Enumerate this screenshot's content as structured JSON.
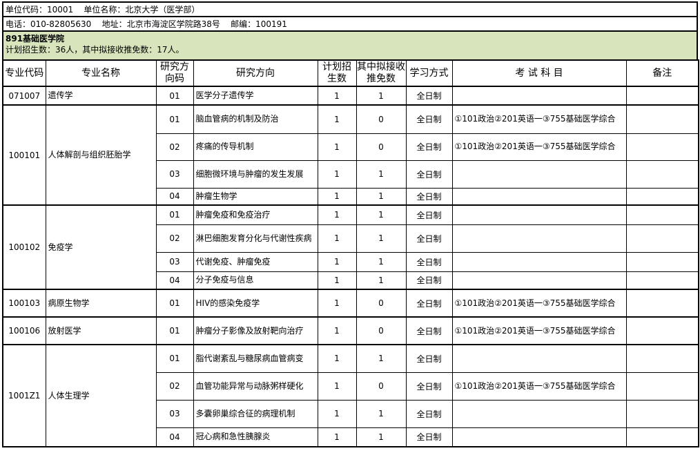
{
  "unit_line": "单位代码：10001    单位名称：北京大学（医学部）",
  "contact_line": "电话：010-82805630    地址：北京市海淀区学院路38号    邮编：100191",
  "department": {
    "title": "891基础医学院",
    "summary": "计划招生数：36人，其中拟接收推免数：17人。",
    "color": "#d8e4bc"
  },
  "headers": [
    "专业代码",
    "专业名称",
    "研究方向码",
    "研究方向",
    "计划招生数",
    "其中拟接收推免数",
    "学习方式",
    "考 试 科 目",
    "备注"
  ],
  "majors": [
    {
      "code": "071007",
      "name": "遗传学",
      "directions": [
        {
          "code": "01",
          "name": "医学分子遗传学",
          "plan": "1",
          "exempt": "1",
          "mode": "全日制",
          "exam": "",
          "note": ""
        }
      ]
    },
    {
      "code": "100101",
      "name": "人体解剖与组织胚胎学",
      "directions": [
        {
          "code": "01",
          "name": "脑血管病的机制及防治",
          "plan": "1",
          "exempt": "0",
          "mode": "全日制",
          "exam": "①101政治②201英语一③755基础医学综合",
          "note": ""
        },
        {
          "code": "02",
          "name": "疼痛的传导机制",
          "plan": "1",
          "exempt": "0",
          "mode": "全日制",
          "exam": "①101政治②201英语一③755基础医学综合",
          "note": ""
        },
        {
          "code": "03",
          "name": "细胞微环境与肿瘤的发生发展",
          "plan": "1",
          "exempt": "1",
          "mode": "全日制",
          "exam": "",
          "note": ""
        },
        {
          "code": "04",
          "name": "肿瘤生物学",
          "plan": "1",
          "exempt": "1",
          "mode": "全日制",
          "exam": "",
          "note": ""
        }
      ]
    },
    {
      "code": "100102",
      "name": "免疫学",
      "directions": [
        {
          "code": "01",
          "name": "肿瘤免疫和免疫治疗",
          "plan": "1",
          "exempt": "1",
          "mode": "全日制",
          "exam": "",
          "note": ""
        },
        {
          "code": "02",
          "name": "淋巴细胞发育分化与代谢性疾病",
          "plan": "1",
          "exempt": "1",
          "mode": "全日制",
          "exam": "",
          "note": ""
        },
        {
          "code": "03",
          "name": "代谢免疫、肿瘤免疫",
          "plan": "1",
          "exempt": "1",
          "mode": "全日制",
          "exam": "",
          "note": ""
        },
        {
          "code": "04",
          "name": "分子免疫与信息",
          "plan": "1",
          "exempt": "1",
          "mode": "全日制",
          "exam": "",
          "note": ""
        }
      ]
    },
    {
      "code": "100103",
      "name": "病原生物学",
      "directions": [
        {
          "code": "01",
          "name": "HIV的感染免疫学",
          "plan": "1",
          "exempt": "0",
          "mode": "全日制",
          "exam": "①101政治②201英语一③755基础医学综合",
          "note": ""
        }
      ]
    },
    {
      "code": "100106",
      "name": "放射医学",
      "directions": [
        {
          "code": "01",
          "name": "肿瘤分子影像及放射靶向治疗",
          "plan": "1",
          "exempt": "0",
          "mode": "全日制",
          "exam": "①101政治②201英语一③755基础医学综合",
          "note": ""
        }
      ]
    },
    {
      "code": "1001Z1",
      "name": "人体生理学",
      "directions": [
        {
          "code": "01",
          "name": "脂代谢紊乱与糖尿病血管病变",
          "plan": "1",
          "exempt": "1",
          "mode": "全日制",
          "exam": "",
          "note": ""
        },
        {
          "code": "02",
          "name": "血管功能异常与动脉粥样硬化",
          "plan": "1",
          "exempt": "0",
          "mode": "全日制",
          "exam": "①101政治②201英语一③755基础医学综合",
          "note": ""
        },
        {
          "code": "03",
          "name": "多囊卵巢综合征的病理机制",
          "plan": "1",
          "exempt": "1",
          "mode": "全日制",
          "exam": "",
          "note": ""
        },
        {
          "code": "04",
          "name": "冠心病和急性胰腺炎",
          "plan": "1",
          "exempt": "1",
          "mode": "全日制",
          "exam": "",
          "note": ""
        }
      ]
    }
  ]
}
